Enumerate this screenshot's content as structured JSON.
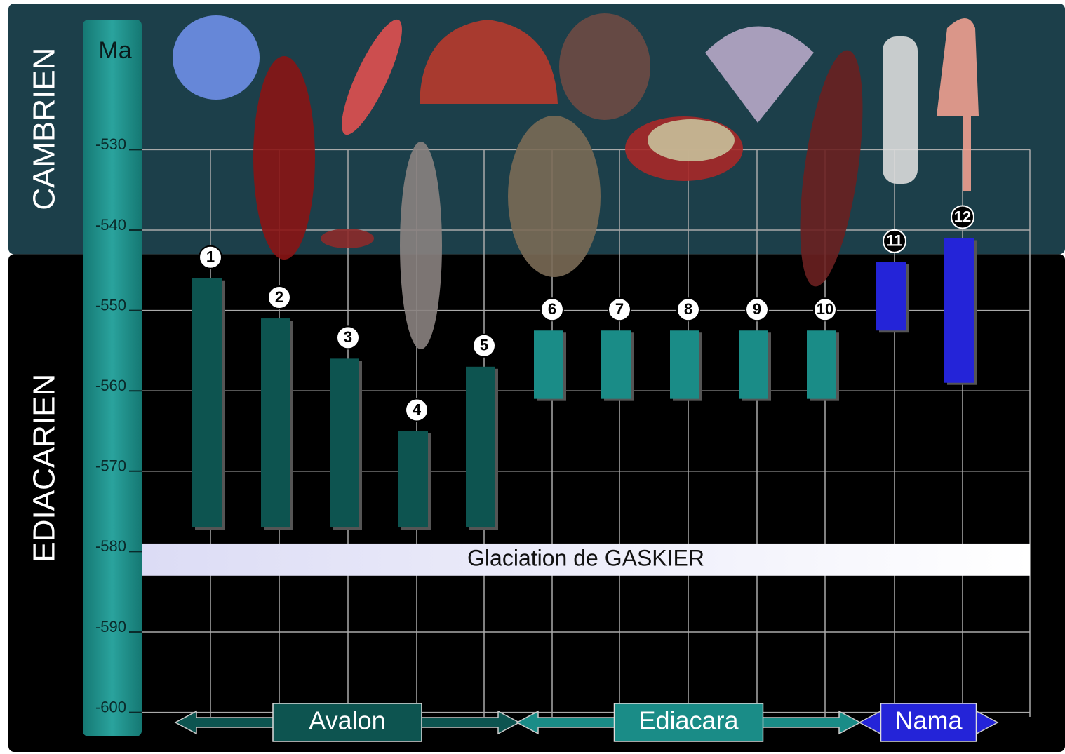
{
  "chart_data": {
    "type": "range",
    "y_axis_label": "Ma",
    "ylim": [
      -514,
      -603
    ],
    "yticks": [
      -530,
      -540,
      -550,
      -560,
      -570,
      -580,
      -590,
      -600
    ],
    "grid": true,
    "periods": [
      {
        "name": "CAMBRIEN",
        "color": "#1c3f4a"
      },
      {
        "name": "EDIACARIEN",
        "color": "#000000"
      }
    ],
    "period_boundary": -543,
    "categories": [
      "1",
      "2",
      "3",
      "4",
      "5",
      "6",
      "7",
      "8",
      "9",
      "10",
      "11",
      "12"
    ],
    "series": [
      {
        "name": "Avalon",
        "color": "#0d5450",
        "values": [
          [
            -546,
            -577
          ],
          [
            -551,
            -577
          ],
          [
            -556,
            -577
          ],
          [
            -565,
            -577
          ],
          [
            -557,
            -577
          ],
          null,
          null,
          null,
          null,
          null,
          null,
          null
        ]
      },
      {
        "name": "Ediacara",
        "color": "#1a8c87",
        "values": [
          null,
          null,
          null,
          null,
          null,
          [
            -552.5,
            -561
          ],
          [
            -552.5,
            -561
          ],
          [
            -552.5,
            -561
          ],
          [
            -552.5,
            -561
          ],
          [
            -552.5,
            -561
          ],
          null,
          null
        ]
      },
      {
        "name": "Nama",
        "color": "#2424d8",
        "values": [
          null,
          null,
          null,
          null,
          null,
          null,
          null,
          null,
          null,
          null,
          [
            -544,
            -552.5
          ],
          [
            -541,
            -559
          ]
        ]
      }
    ],
    "annotations": [
      {
        "text": "Glaciation de GASKIER",
        "range": [
          -579,
          -583
        ]
      }
    ]
  }
}
